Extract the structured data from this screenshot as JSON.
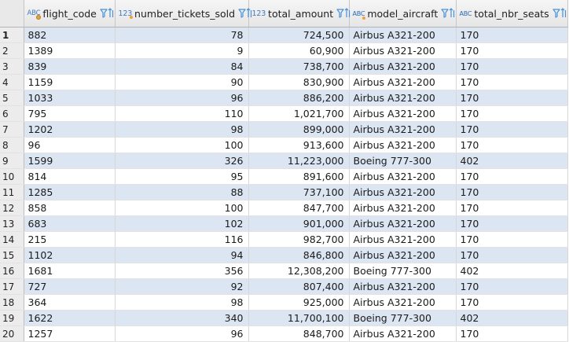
{
  "columns": [
    {
      "name": "flight_code",
      "type_icon": "ABC",
      "type": "string-key"
    },
    {
      "name": "number_tickets_sold",
      "type_icon": "123",
      "type": "number"
    },
    {
      "name": "total_amount",
      "type_icon": "123",
      "type": "number"
    },
    {
      "name": "model_aircraft",
      "type_icon": "ABC",
      "type": "string"
    },
    {
      "name": "total_nbr_seats",
      "type_icon": "ABC",
      "type": "string"
    }
  ],
  "rows": [
    {
      "n": "1",
      "flight_code": "882",
      "number_tickets_sold": "78",
      "total_amount": "724,500",
      "model_aircraft": "Airbus A321-200",
      "total_nbr_seats": "170"
    },
    {
      "n": "2",
      "flight_code": "1389",
      "number_tickets_sold": "9",
      "total_amount": "60,900",
      "model_aircraft": "Airbus A321-200",
      "total_nbr_seats": "170"
    },
    {
      "n": "3",
      "flight_code": "839",
      "number_tickets_sold": "84",
      "total_amount": "738,700",
      "model_aircraft": "Airbus A321-200",
      "total_nbr_seats": "170"
    },
    {
      "n": "4",
      "flight_code": "1159",
      "number_tickets_sold": "90",
      "total_amount": "830,900",
      "model_aircraft": "Airbus A321-200",
      "total_nbr_seats": "170"
    },
    {
      "n": "5",
      "flight_code": "1033",
      "number_tickets_sold": "96",
      "total_amount": "886,200",
      "model_aircraft": "Airbus A321-200",
      "total_nbr_seats": "170"
    },
    {
      "n": "6",
      "flight_code": "795",
      "number_tickets_sold": "110",
      "total_amount": "1,021,700",
      "model_aircraft": "Airbus A321-200",
      "total_nbr_seats": "170"
    },
    {
      "n": "7",
      "flight_code": "1202",
      "number_tickets_sold": "98",
      "total_amount": "899,000",
      "model_aircraft": "Airbus A321-200",
      "total_nbr_seats": "170"
    },
    {
      "n": "8",
      "flight_code": "96",
      "number_tickets_sold": "100",
      "total_amount": "913,600",
      "model_aircraft": "Airbus A321-200",
      "total_nbr_seats": "170"
    },
    {
      "n": "9",
      "flight_code": "1599",
      "number_tickets_sold": "326",
      "total_amount": "11,223,000",
      "model_aircraft": "Boeing 777-300",
      "total_nbr_seats": "402"
    },
    {
      "n": "10",
      "flight_code": "814",
      "number_tickets_sold": "95",
      "total_amount": "891,600",
      "model_aircraft": "Airbus A321-200",
      "total_nbr_seats": "170"
    },
    {
      "n": "11",
      "flight_code": "1285",
      "number_tickets_sold": "88",
      "total_amount": "737,100",
      "model_aircraft": "Airbus A321-200",
      "total_nbr_seats": "170"
    },
    {
      "n": "12",
      "flight_code": "858",
      "number_tickets_sold": "100",
      "total_amount": "847,700",
      "model_aircraft": "Airbus A321-200",
      "total_nbr_seats": "170"
    },
    {
      "n": "13",
      "flight_code": "683",
      "number_tickets_sold": "102",
      "total_amount": "901,000",
      "model_aircraft": "Airbus A321-200",
      "total_nbr_seats": "170"
    },
    {
      "n": "14",
      "flight_code": "215",
      "number_tickets_sold": "116",
      "total_amount": "982,700",
      "model_aircraft": "Airbus A321-200",
      "total_nbr_seats": "170"
    },
    {
      "n": "15",
      "flight_code": "1102",
      "number_tickets_sold": "94",
      "total_amount": "846,800",
      "model_aircraft": "Airbus A321-200",
      "total_nbr_seats": "170"
    },
    {
      "n": "16",
      "flight_code": "1681",
      "number_tickets_sold": "356",
      "total_amount": "12,308,200",
      "model_aircraft": "Boeing 777-300",
      "total_nbr_seats": "402"
    },
    {
      "n": "17",
      "flight_code": "727",
      "number_tickets_sold": "92",
      "total_amount": "807,400",
      "model_aircraft": "Airbus A321-200",
      "total_nbr_seats": "170"
    },
    {
      "n": "18",
      "flight_code": "364",
      "number_tickets_sold": "98",
      "total_amount": "925,000",
      "model_aircraft": "Airbus A321-200",
      "total_nbr_seats": "170"
    },
    {
      "n": "19",
      "flight_code": "1622",
      "number_tickets_sold": "340",
      "total_amount": "11,700,100",
      "model_aircraft": "Boeing 777-300",
      "total_nbr_seats": "402"
    },
    {
      "n": "20",
      "flight_code": "1257",
      "number_tickets_sold": "96",
      "total_amount": "848,700",
      "model_aircraft": "Airbus A321-200",
      "total_nbr_seats": "170"
    }
  ],
  "icons": {
    "sort": "sort-filter-icon",
    "type_string": "abc-type-icon",
    "type_number": "number-type-icon"
  },
  "colors": {
    "row_stripe": "#dce6f3",
    "header_bg": "#ececec",
    "type_icon_blue": "#3c7cc4",
    "sort_icon_blue": "#4a90d9"
  }
}
